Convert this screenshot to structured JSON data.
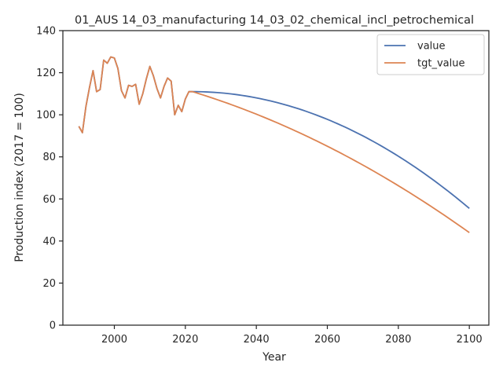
{
  "chart_data": {
    "type": "line",
    "title": "01_AUS 14_03_manufacturing 14_03_02_chemical_incl_petrochemical",
    "xlabel": "Year",
    "ylabel": "Production index (2017 = 100)",
    "xlim": [
      1985.5,
      2105.5
    ],
    "ylim": [
      0,
      140
    ],
    "xticks": [
      2000,
      2020,
      2040,
      2060,
      2080,
      2100
    ],
    "yticks": [
      0,
      20,
      40,
      60,
      80,
      100,
      120,
      140
    ],
    "grid": false,
    "legend_position": "top-right",
    "historical": {
      "x": [
        1990,
        1991,
        1992,
        1993,
        1994,
        1995,
        1996,
        1997,
        1998,
        1999,
        2000,
        2001,
        2002,
        2003,
        2004,
        2005,
        2006,
        2007,
        2008,
        2009,
        2010,
        2011,
        2012,
        2013,
        2014,
        2015,
        2016,
        2017,
        2018,
        2019,
        2020,
        2021,
        2022
      ],
      "y": [
        94.5,
        91.5,
        104,
        113,
        121,
        111,
        112,
        126,
        124.5,
        127.5,
        127,
        122,
        111.5,
        108,
        114,
        113.5,
        114.5,
        105,
        110,
        117,
        123,
        118.5,
        112.5,
        108,
        113.5,
        117.5,
        116,
        100,
        104.5,
        101.5,
        107.5,
        111,
        111
      ]
    },
    "series": [
      {
        "name": "value",
        "color": "#4c72b0",
        "projection": {
          "start_year": 2022,
          "end_year": 2100,
          "start_value": 111,
          "end_value": 55.5,
          "shape": "quadratic"
        }
      },
      {
        "name": "tgt_value",
        "color": "#dd8452",
        "projection": {
          "start_year": 2022,
          "end_year": 2100,
          "start_value": 111,
          "end_value": 44,
          "shape": "quadratic-linear"
        }
      }
    ]
  }
}
